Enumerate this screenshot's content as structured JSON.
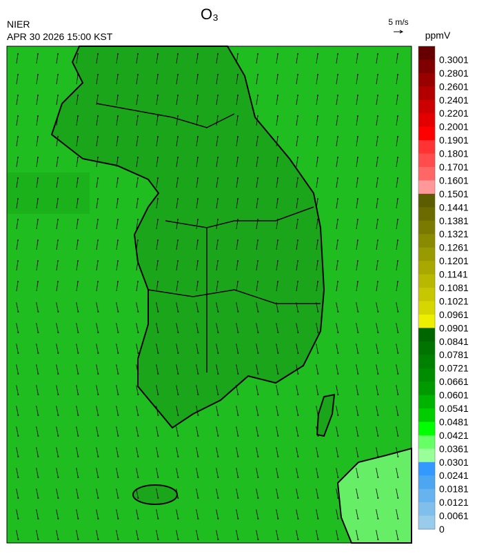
{
  "title": "O₃",
  "agency": "NIER",
  "timestamp": "APR 30 2026 15:00 KST",
  "wind_scale": "5 m/s",
  "unit": "ppmV",
  "colorbar": {
    "labels": [
      "0.3001",
      "0.2801",
      "0.2601",
      "0.2401",
      "0.2201",
      "0.2001",
      "0.1901",
      "0.1801",
      "0.1701",
      "0.1601",
      "0.1501",
      "0.1441",
      "0.1381",
      "0.1321",
      "0.1261",
      "0.1201",
      "0.1141",
      "0.1081",
      "0.1021",
      "0.0961",
      "0.0901",
      "0.0841",
      "0.0781",
      "0.0721",
      "0.0661",
      "0.0601",
      "0.0541",
      "0.0481",
      "0.0421",
      "0.0361",
      "0.0301",
      "0.0241",
      "0.0181",
      "0.0121",
      "0.0061",
      "0"
    ],
    "colors": [
      "#660000",
      "#7f0000",
      "#990000",
      "#b20000",
      "#cc0000",
      "#e50000",
      "#ff0000",
      "#ff3333",
      "#ff4d4d",
      "#ff6666",
      "#ff9999",
      "#5c5c00",
      "#6b6b00",
      "#7a7a00",
      "#8a8a00",
      "#999900",
      "#a8a800",
      "#b8b800",
      "#c7c700",
      "#d6d600",
      "#eeee00",
      "#006600",
      "#007300",
      "#008000",
      "#008c00",
      "#009900",
      "#00b300",
      "#00cc00",
      "#00ff00",
      "#66ff66",
      "#99ff99",
      "#3399ff",
      "#4da6f0",
      "#66b3f0",
      "#80bfec",
      "#99cceb"
    ]
  }
}
